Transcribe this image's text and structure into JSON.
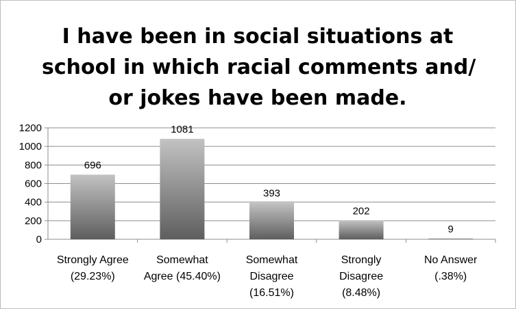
{
  "chart_data": {
    "type": "bar",
    "title_lines": [
      "I have been in social situations at",
      "school in which racial comments and/",
      "or jokes have been made."
    ],
    "categories": [
      [
        "Strongly Agree",
        "(29.23%)"
      ],
      [
        "Somewhat",
        "Agree (45.40%)"
      ],
      [
        "Somewhat",
        "Disagree",
        "(16.51%)"
      ],
      [
        "Strongly",
        "Disagree",
        "(8.48%)"
      ],
      [
        "No Answer",
        "(.38%)"
      ]
    ],
    "values": [
      696,
      1081,
      393,
      202,
      9
    ],
    "data_labels": [
      "696",
      "1081",
      "393",
      "202",
      "9"
    ],
    "ylim": [
      0,
      1200
    ],
    "yticks": [
      0,
      200,
      400,
      600,
      800,
      1000,
      1200
    ],
    "grid": true,
    "legend": "none",
    "xlabel": "",
    "ylabel": "",
    "colors": {
      "bar_top": "#c2c2c2",
      "bar_bottom": "#5e5e5e",
      "gridline": "#8c8c8c",
      "axis": "#8c8c8c"
    }
  }
}
